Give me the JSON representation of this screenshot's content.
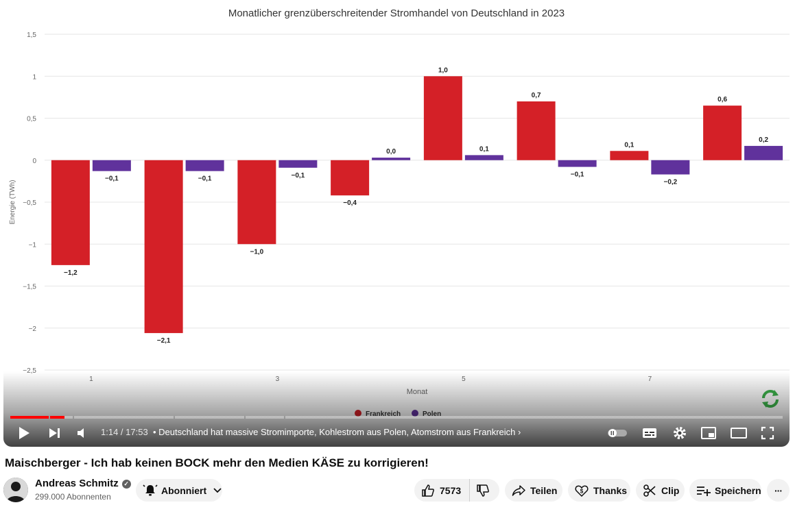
{
  "chart_data": {
    "type": "bar",
    "title": "Monatlicher grenzüberschreitender Stromhandel von Deutschland in 2023",
    "xlabel": "Monat",
    "ylabel": "Energie (TWh)",
    "categories": [
      1,
      2,
      3,
      4,
      5,
      6,
      7,
      8
    ],
    "x_tick_labels": [
      "1",
      "3",
      "5",
      "7"
    ],
    "ylim": [
      -2.5,
      1.5
    ],
    "y_ticks": [
      1.5,
      1,
      0.5,
      0,
      -0.5,
      -1,
      -1.5,
      -2,
      -2.5
    ],
    "y_tick_labels": [
      "1,5",
      "1",
      "0,5",
      "0",
      "−0,5",
      "−1",
      "−1,5",
      "−2",
      "−2,5"
    ],
    "grid": true,
    "legend_position": "bottom-center",
    "series": [
      {
        "name": "Frankreich",
        "color": "#d42027",
        "values": [
          -1.25,
          -2.06,
          -1.0,
          -0.42,
          1.0,
          0.7,
          0.11,
          0.65
        ],
        "labels": [
          "−1,2",
          "−2,1",
          "−1,0",
          "−0,4",
          "1,0",
          "0,7",
          "0,1",
          "0,6"
        ]
      },
      {
        "name": "Polen",
        "color": "#60329c",
        "values": [
          -0.13,
          -0.13,
          -0.09,
          0.03,
          0.06,
          -0.08,
          -0.17,
          0.17
        ],
        "labels": [
          "−0,1",
          "−0,1",
          "−0,1",
          "0,0",
          "0,1",
          "−0,1",
          "−0,2",
          "0,2"
        ]
      }
    ]
  },
  "player": {
    "time": "1:14 / 17:53",
    "chapter": "• Deutschland hat massive Stromimporte, Kohlestrom aus Polen, Atomstrom aus Frankreich",
    "chapter_arrow": "›",
    "progress_fraction": 0.069,
    "chapter_segments": [
      0.05,
      0.03,
      0.13,
      0.09,
      0.05,
      0.65
    ]
  },
  "video": {
    "title": "Maischberger - Ich hab keinen BOCK mehr den Medien KÄSE zu korrigieren!"
  },
  "channel": {
    "name": "Andreas Schmitz",
    "subscribers": "299.000 Abonnenten",
    "subscribe_label": "Abonniert"
  },
  "actions": {
    "likes": "7573",
    "share": "Teilen",
    "thanks": "Thanks",
    "clip": "Clip",
    "save": "Speichern",
    "more": "···"
  },
  "colors": {
    "progress_played": "#ff0000",
    "frankreich": "#d42027",
    "polen": "#60329c"
  }
}
